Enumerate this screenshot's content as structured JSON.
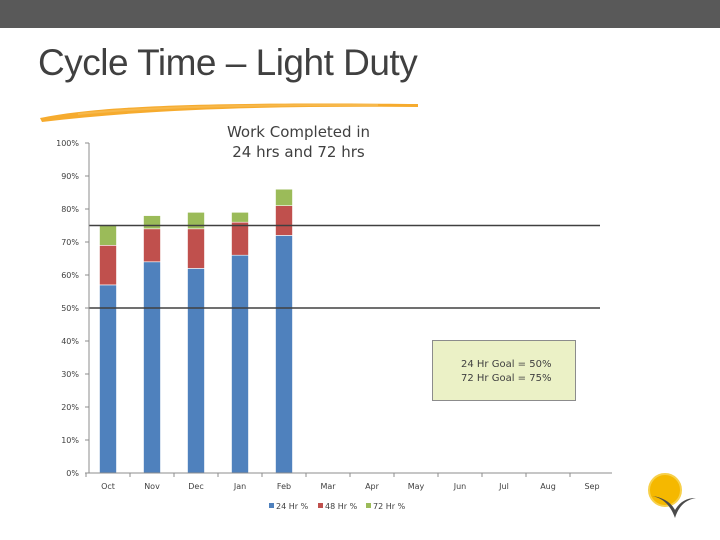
{
  "slide": {
    "title": "Cycle Time – Light Duty"
  },
  "goal_box": {
    "line1": "24 Hr Goal = 50%",
    "line2": "72 Hr Goal = 75%"
  },
  "colors": {
    "series_24": "#4f81bd",
    "series_48": "#c0504d",
    "series_72": "#9bbb59",
    "goal_line": "#404040",
    "top_bar": "#595959",
    "brush": "#f5a623"
  },
  "chart_data": {
    "type": "bar",
    "stacked": true,
    "title_line1": "Work Completed in",
    "title_line2": "24 hrs and 72 hrs",
    "categories": [
      "Oct",
      "Nov",
      "Dec",
      "Jan",
      "Feb",
      "Mar",
      "Apr",
      "May",
      "Jun",
      "Jul",
      "Aug",
      "Sep"
    ],
    "series": [
      {
        "name": "24 Hr %",
        "values": [
          57,
          64,
          62,
          66,
          72,
          null,
          null,
          null,
          null,
          null,
          null,
          null
        ]
      },
      {
        "name": "48 Hr %",
        "values": [
          12,
          10,
          12,
          10,
          9,
          null,
          null,
          null,
          null,
          null,
          null,
          null
        ]
      },
      {
        "name": "72 Hr %",
        "values": [
          6,
          4,
          5,
          3,
          5,
          null,
          null,
          null,
          null,
          null,
          null,
          null
        ]
      }
    ],
    "goal_lines": [
      50,
      75
    ],
    "ylim": [
      0,
      100
    ],
    "yticks": [
      {
        "value": 0,
        "label": "0%"
      },
      {
        "value": 10,
        "label": "10%"
      },
      {
        "value": 20,
        "label": "20%"
      },
      {
        "value": 30,
        "label": "30%"
      },
      {
        "value": 40,
        "label": "40%"
      },
      {
        "value": 50,
        "label": "50%"
      },
      {
        "value": 60,
        "label": "60%"
      },
      {
        "value": 70,
        "label": "70%"
      },
      {
        "value": 80,
        "label": "80%"
      },
      {
        "value": 90,
        "label": "90%"
      },
      {
        "value": 100,
        "label": "100%"
      }
    ],
    "grid": false,
    "legend_position": "bottom"
  }
}
